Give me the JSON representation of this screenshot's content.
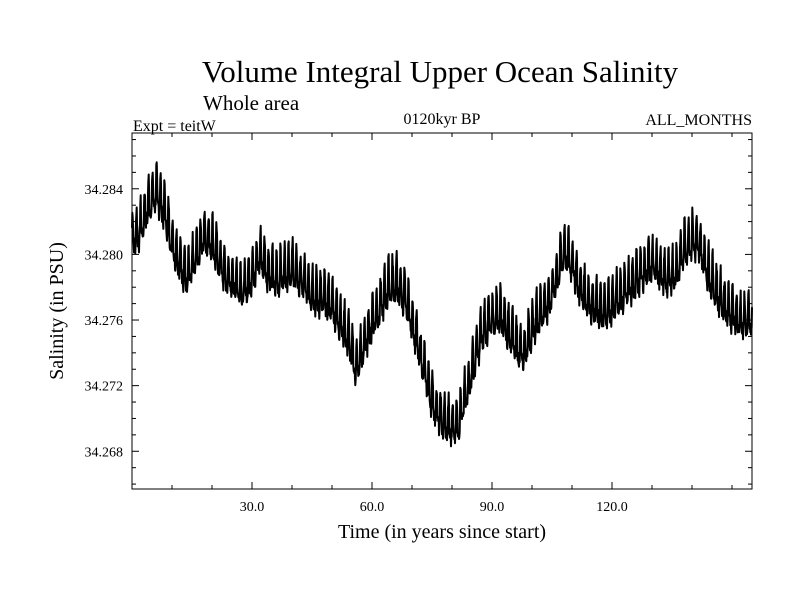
{
  "chart_data": {
    "type": "line",
    "title": "Volume Integral Upper Ocean Salinity",
    "subtitle": "Whole area",
    "experiment": "Expt = teitW",
    "period": "0120kyr BP",
    "months": "ALL_MONTHS",
    "xlabel": "Time (in years since start)",
    "ylabel": "Salinity (in PSU)",
    "xlim": [
      0,
      155
    ],
    "ylim": [
      34.2657,
      34.2874
    ],
    "xticks": [
      30,
      60,
      90,
      120
    ],
    "xtick_labels": [
      "30.0",
      "60.0",
      "90.0",
      "120.0"
    ],
    "yticks": [
      34.268,
      34.272,
      34.276,
      34.28,
      34.284
    ],
    "ytick_labels": [
      "34.268",
      "34.272",
      "34.276",
      "34.280",
      "34.284"
    ],
    "series": [
      {
        "name": "Salinity",
        "color": "#000000",
        "x": [
          0,
          2,
          4,
          6,
          8,
          10,
          12,
          14,
          16,
          18,
          20,
          22,
          24,
          26,
          28,
          30,
          32,
          34,
          36,
          38,
          40,
          42,
          44,
          46,
          48,
          50,
          52,
          54,
          56,
          58,
          60,
          62,
          64,
          66,
          68,
          70,
          72,
          74,
          76,
          78,
          80,
          82,
          84,
          86,
          88,
          90,
          92,
          94,
          96,
          98,
          100,
          102,
          104,
          106,
          108,
          110,
          112,
          114,
          116,
          118,
          120,
          122,
          124,
          126,
          128,
          130,
          132,
          134,
          136,
          138,
          140,
          142,
          144,
          146,
          148,
          150,
          152,
          155
        ],
        "values": [
          34.281,
          34.2815,
          34.283,
          34.2838,
          34.2828,
          34.2808,
          34.2795,
          34.2785,
          34.28,
          34.2812,
          34.2808,
          34.2795,
          34.2785,
          34.2783,
          34.2778,
          34.2788,
          34.28,
          34.279,
          34.2785,
          34.279,
          34.2792,
          34.2785,
          34.278,
          34.2775,
          34.2773,
          34.277,
          34.276,
          34.275,
          34.273,
          34.2745,
          34.276,
          34.2768,
          34.278,
          34.2783,
          34.2775,
          34.276,
          34.274,
          34.272,
          34.2705,
          34.2698,
          34.2695,
          34.27,
          34.272,
          34.274,
          34.2755,
          34.276,
          34.2765,
          34.2755,
          34.2745,
          34.274,
          34.2755,
          34.2765,
          34.277,
          34.2785,
          34.2803,
          34.2795,
          34.278,
          34.2773,
          34.2768,
          34.2765,
          34.277,
          34.2775,
          34.278,
          34.2785,
          34.279,
          34.2795,
          34.279,
          34.2785,
          34.279,
          34.2803,
          34.281,
          34.2805,
          34.279,
          34.2778,
          34.277,
          34.2765,
          34.276,
          34.276
        ]
      }
    ]
  }
}
